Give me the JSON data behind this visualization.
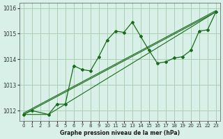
{
  "title": "Graphe pression niveau de la mer (hPa)",
  "bg_color": "#d8f0e8",
  "grid_color": "#aacfb5",
  "line_color": "#1a6b1a",
  "x_ticks": [
    0,
    1,
    2,
    3,
    4,
    5,
    6,
    7,
    8,
    9,
    10,
    11,
    12,
    13,
    14,
    15,
    16,
    17,
    18,
    19,
    20,
    21,
    22,
    23
  ],
  "y_ticks": [
    1012,
    1013,
    1014,
    1015,
    1016
  ],
  "ylim": [
    1011.6,
    1016.2
  ],
  "xlim": [
    -0.5,
    23.5
  ],
  "series1_x": [
    0,
    1,
    3,
    4,
    5,
    6,
    7,
    8,
    9,
    10,
    11,
    12,
    13,
    14,
    15,
    16,
    17,
    18,
    19,
    20,
    21,
    22,
    23
  ],
  "series1_y": [
    1011.85,
    1012.0,
    1011.85,
    1012.25,
    1012.25,
    1013.75,
    1013.6,
    1013.55,
    1014.1,
    1014.75,
    1015.1,
    1015.05,
    1015.45,
    1014.9,
    1014.35,
    1013.85,
    1013.9,
    1014.05,
    1014.1,
    1014.35,
    1015.1,
    1015.15,
    1015.85
  ],
  "series2_x": [
    0,
    23
  ],
  "series2_y": [
    1011.85,
    1015.85
  ],
  "series3_x": [
    0,
    23
  ],
  "series3_y": [
    1011.85,
    1015.85
  ],
  "series4_x": [
    0,
    3,
    23
  ],
  "series4_y": [
    1011.85,
    1011.85,
    1015.85
  ]
}
